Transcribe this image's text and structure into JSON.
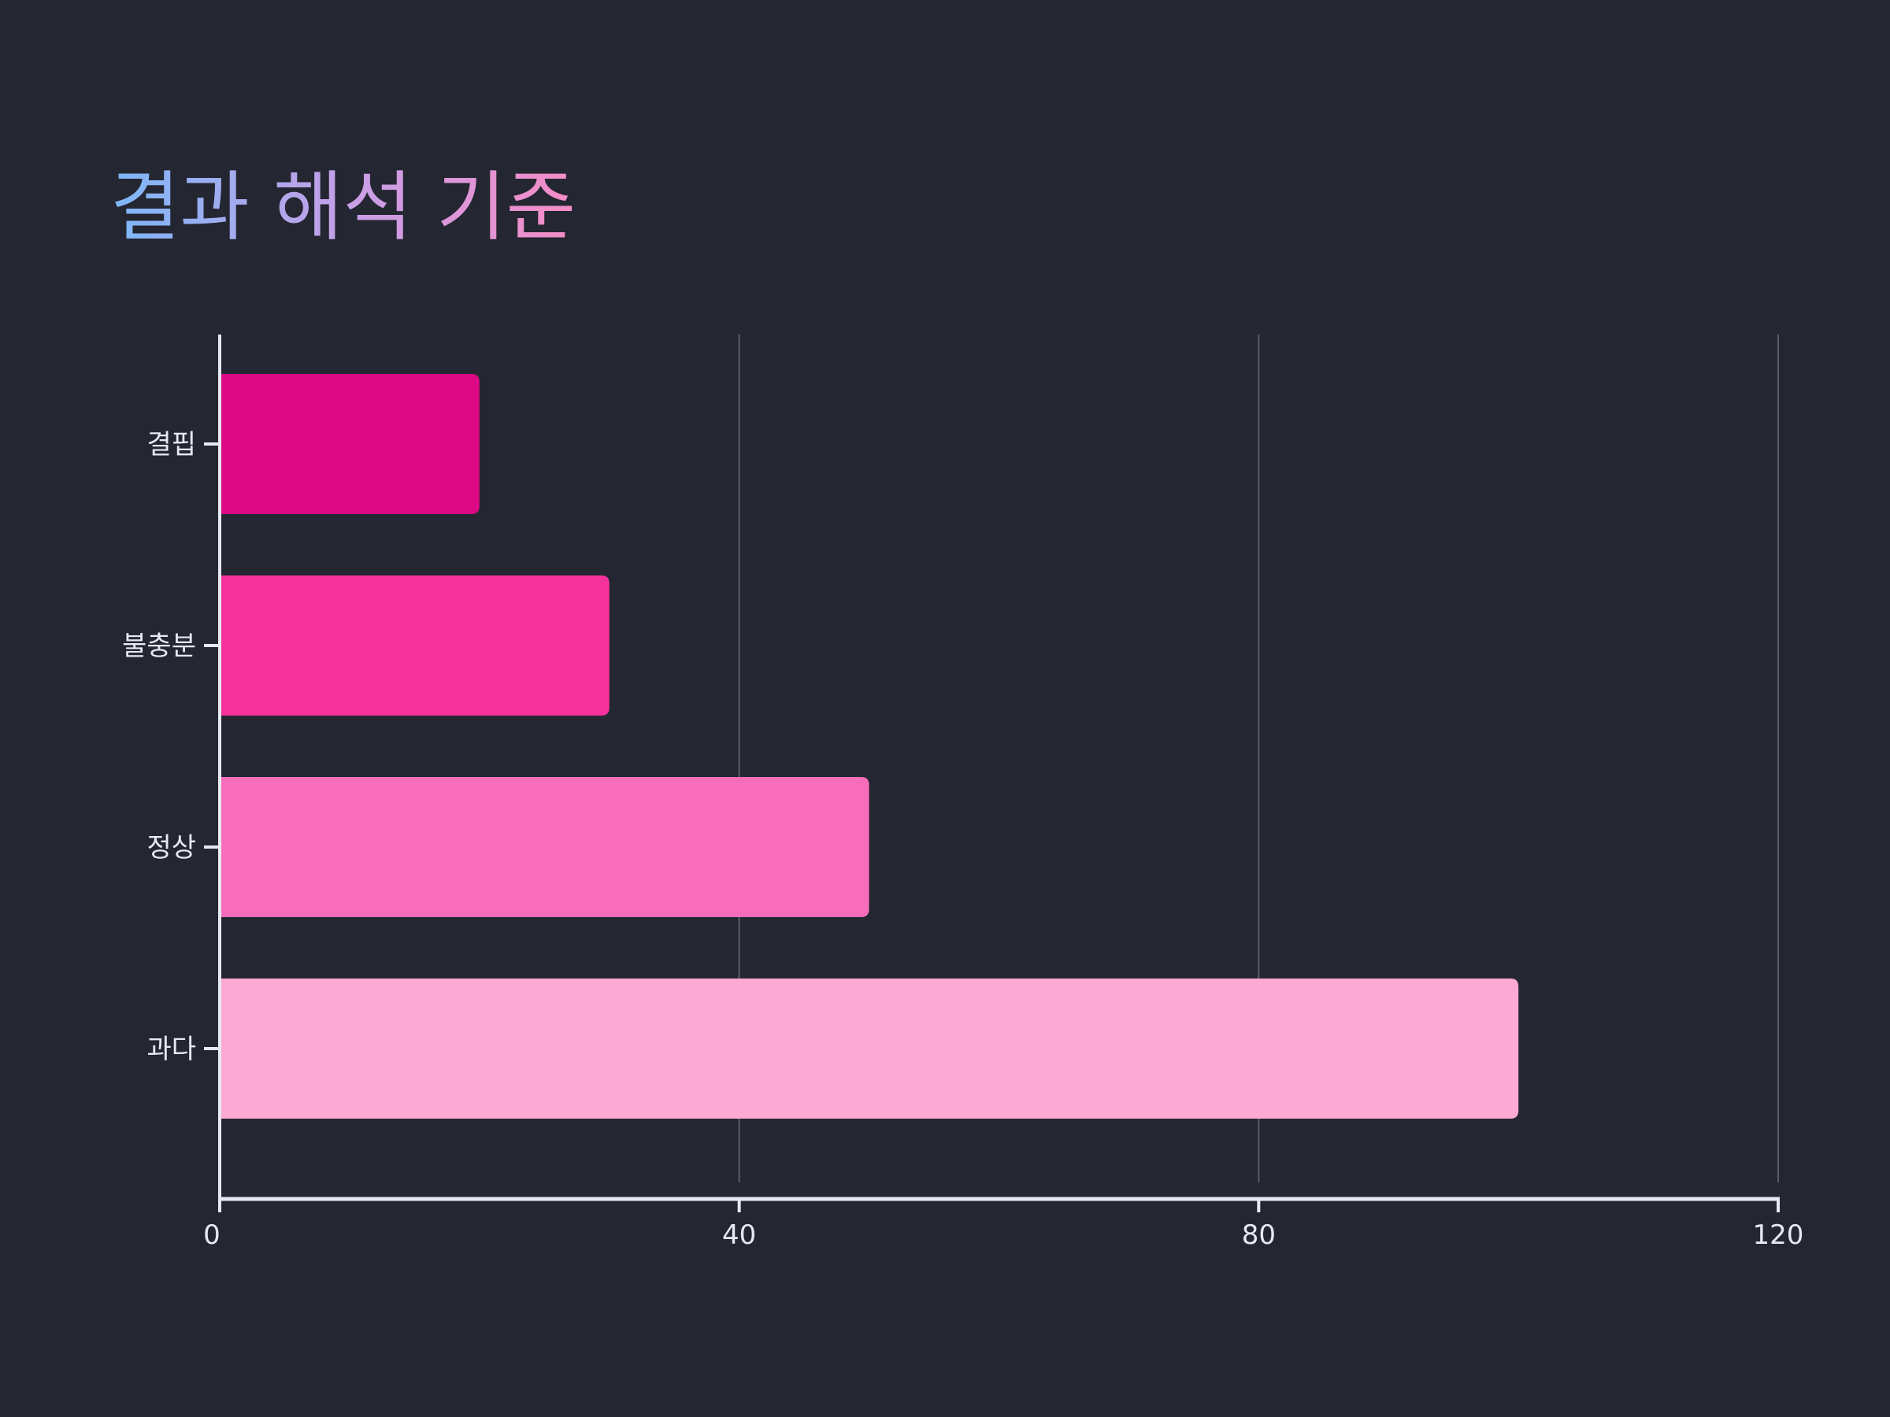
{
  "chart_data": {
    "type": "bar",
    "orientation": "horizontal",
    "title": "결과 해석 기준",
    "categories": [
      "결핍",
      "불충분",
      "정상",
      "과다"
    ],
    "values": [
      20,
      30,
      50,
      100
    ],
    "xlabel": "",
    "ylabel": "",
    "xlim": [
      0,
      120
    ],
    "xticks": [
      0,
      40,
      80,
      120
    ],
    "grid": "vertical",
    "legend": "none",
    "colors": {
      "background": "#242631",
      "bars": [
        "#dc0a84",
        "#f5319c",
        "#f76dba",
        "#fca9d4"
      ],
      "title_gradient": [
        "#7cb8f7",
        "#c5a0e8",
        "#f58cc6"
      ],
      "axis": "#e6e9f2",
      "grid": "#5a5d68"
    }
  }
}
